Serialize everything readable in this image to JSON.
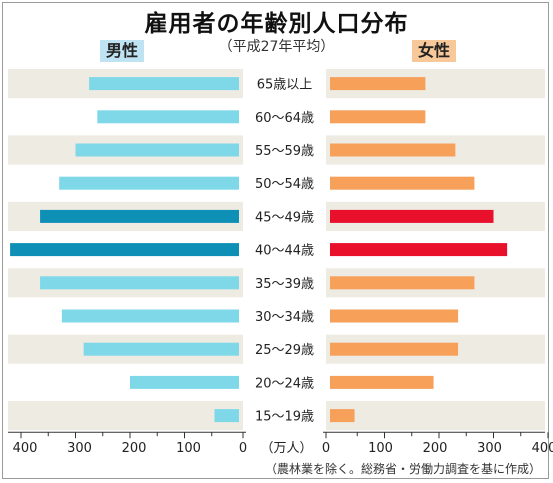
{
  "chart_title": "雇用者の年齢別人口分布",
  "subtitle": "（平成27年平均）",
  "legend": {
    "male": "男性",
    "female": "女性"
  },
  "unit_label": "（万人）",
  "footnote": "（農林業を除く。総務省・労働力調査を基に作成）",
  "colors": {
    "male": "#7fd8e8",
    "male_highlight": "#0e8fb5",
    "female": "#f6a05a",
    "female_highlight": "#e8102a",
    "row_band": "#eeebe2"
  },
  "chart_data": {
    "type": "bar",
    "orientation": "horizontal",
    "style": "population-pyramid",
    "title": "雇用者の年齢別人口分布",
    "subtitle": "（平成27年平均）",
    "unit": "（万人）",
    "categories": [
      "65歳以上",
      "60～64歳",
      "55～59歳",
      "50～54歳",
      "45～49歳",
      "40～44歳",
      "35～39歳",
      "30～34歳",
      "25～29歳",
      "20～24歳",
      "15～19歳"
    ],
    "series": [
      {
        "name": "男性",
        "side": "left",
        "values": [
          275,
          260,
          300,
          330,
          365,
          420,
          365,
          325,
          285,
          200,
          45
        ],
        "highlight": [
          false,
          false,
          false,
          false,
          true,
          true,
          false,
          false,
          false,
          false,
          false
        ]
      },
      {
        "name": "女性",
        "side": "right",
        "values": [
          175,
          175,
          230,
          265,
          300,
          325,
          265,
          235,
          235,
          190,
          45
        ],
        "highlight": [
          false,
          false,
          false,
          false,
          true,
          true,
          false,
          false,
          false,
          false,
          false
        ]
      }
    ],
    "x_ticks_left": [
      400,
      300,
      200,
      100,
      0
    ],
    "x_ticks_right": [
      0,
      100,
      200,
      300,
      400
    ],
    "xlim": [
      0,
      400
    ],
    "grid": false
  }
}
